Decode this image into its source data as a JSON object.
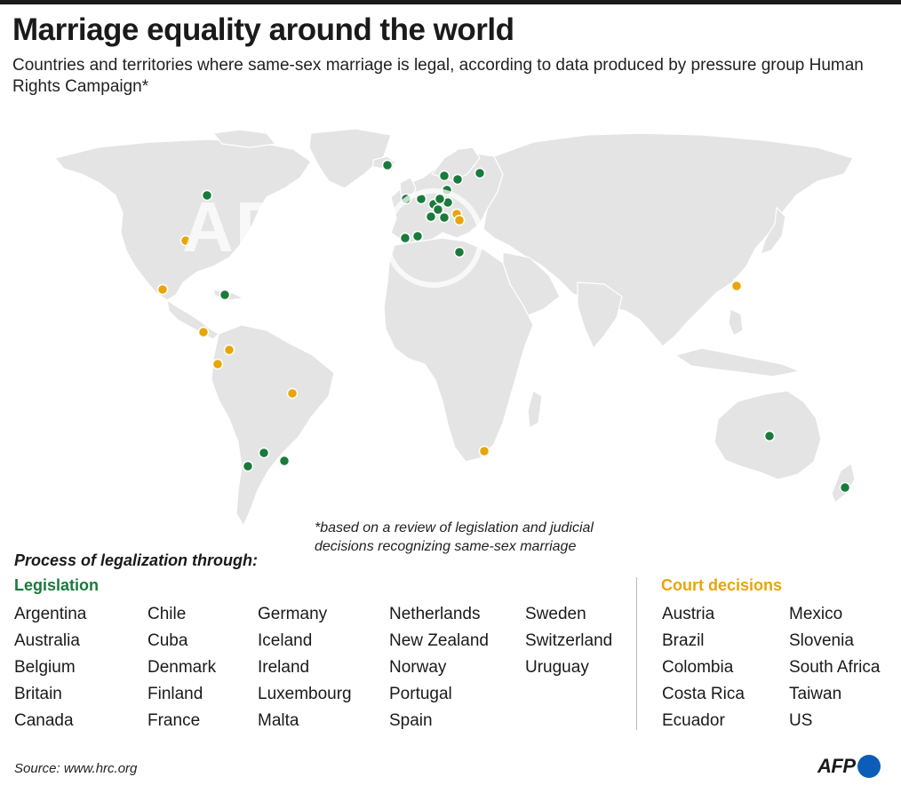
{
  "title": "Marriage equality around the world",
  "subtitle": "Countries and territories where same-sex marriage is legal, according to data produced by pressure group Human Rights Campaign*",
  "footnote": "*based on a review of legislation and judicial decisions recognizing same-sex marriage",
  "legend": {
    "process_label": "Process of legalization through:",
    "legislation_label": "Legislation",
    "court_label": "Court decisions"
  },
  "colors": {
    "legislation": "#1a7a3c",
    "court": "#e8a50a",
    "land": "#e4e4e4"
  },
  "legislation_columns": [
    [
      "Argentina",
      "Australia",
      "Belgium",
      "Britain",
      "Canada"
    ],
    [
      "Chile",
      "Cuba",
      "Denmark",
      "Finland",
      "France"
    ],
    [
      "Germany",
      "Iceland",
      "Ireland",
      "Luxembourg",
      "Malta"
    ],
    [
      "Netherlands",
      "New Zealand",
      "Norway",
      "Portugal",
      "Spain"
    ],
    [
      "Sweden",
      "Switzerland",
      "Uruguay"
    ]
  ],
  "court_columns": [
    [
      "Austria",
      "Brazil",
      "Colombia",
      "Costa Rica",
      "Ecuador"
    ],
    [
      "Mexico",
      "Slovenia",
      "South Africa",
      "Taiwan",
      "US"
    ]
  ],
  "source": "Source: www.hrc.org",
  "logo": "AFP",
  "watermark": "AFP"
}
